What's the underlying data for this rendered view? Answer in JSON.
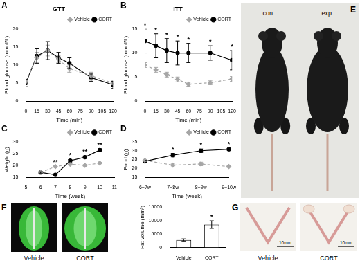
{
  "chart_data": [
    {
      "panel": "A",
      "type": "line",
      "title": "GTT",
      "x_label": "Time (min)",
      "y_label": "Blood glucose (mmol/L)",
      "x": [
        0,
        15,
        30,
        45,
        60,
        90,
        120
      ],
      "xlim": [
        0,
        120
      ],
      "xticks": [
        0,
        15,
        30,
        45,
        60,
        75,
        90,
        105,
        120
      ],
      "ylim": [
        0,
        20
      ],
      "yticks": [
        0,
        5,
        10,
        15,
        20
      ],
      "grid": false,
      "legend": "top right",
      "series": [
        {
          "name": "Vehicle",
          "color": "#a6a6a6",
          "marker": "diamond",
          "line_style": "dashed",
          "values": [
            5.5,
            12,
            14,
            11.5,
            9,
            7,
            5
          ],
          "error": [
            0.5,
            1.5,
            1.5,
            1,
            1,
            1,
            0.5
          ]
        },
        {
          "name": "CORT",
          "color": "#000000",
          "marker": "circle",
          "line_style": "solid",
          "values": [
            5,
            12.5,
            14,
            12,
            10.5,
            6.5,
            4.5
          ],
          "error": [
            1,
            2,
            2.5,
            1.5,
            1.5,
            1,
            1
          ]
        }
      ]
    },
    {
      "panel": "B",
      "type": "line",
      "title": "ITT",
      "x_label": "Time (min)",
      "y_label": "Blood glucose (mmol/L)",
      "x": [
        0,
        15,
        30,
        45,
        60,
        90,
        120
      ],
      "xlim": [
        0,
        120
      ],
      "xticks": [
        0,
        15,
        30,
        45,
        60,
        75,
        90,
        105,
        120
      ],
      "ylim": [
        0,
        15
      ],
      "yticks": [
        0,
        5,
        10,
        15
      ],
      "grid": false,
      "legend": "top right",
      "series": [
        {
          "name": "Vehicle",
          "color": "#a6a6a6",
          "marker": "diamond",
          "line_style": "dashed",
          "values": [
            7.5,
            6.5,
            5.5,
            4.5,
            3.5,
            3.8,
            4.6
          ],
          "error": [
            0.5,
            0.5,
            0.5,
            0.5,
            0.4,
            0.4,
            0.5
          ]
        },
        {
          "name": "CORT",
          "color": "#000000",
          "marker": "circle",
          "line_style": "solid",
          "values": [
            12.5,
            11.5,
            10.5,
            10,
            10,
            10,
            8.5
          ],
          "error": [
            2.5,
            2.5,
            2.5,
            2.5,
            2,
            1.5,
            2
          ]
        }
      ],
      "annotations": [
        {
          "x": 0,
          "text": "*"
        },
        {
          "x": 15,
          "text": "*"
        },
        {
          "x": 30,
          "text": "*"
        },
        {
          "x": 45,
          "text": "*"
        },
        {
          "x": 60,
          "text": "*"
        },
        {
          "x": 90,
          "text": "*"
        },
        {
          "x": 120,
          "text": "*"
        }
      ]
    },
    {
      "panel": "C",
      "type": "line",
      "x_label": "Time (week)",
      "y_label": "Weight (g)",
      "x": [
        6,
        7,
        8,
        9,
        10
      ],
      "xlim": [
        5,
        11
      ],
      "xticks": [
        5,
        6,
        7,
        8,
        9,
        10,
        11
      ],
      "ylim": [
        15,
        30
      ],
      "yticks": [
        15,
        20,
        25,
        30
      ],
      "grid": false,
      "legend": "top right",
      "series": [
        {
          "name": "Vehicle",
          "color": "#a6a6a6",
          "marker": "diamond",
          "line_style": "dashed",
          "values": [
            17,
            19.5,
            20.5,
            20,
            21
          ],
          "error": [
            0.3,
            0.3,
            0.4,
            0.3,
            0.3
          ]
        },
        {
          "name": "CORT",
          "color": "#000000",
          "marker": "circle",
          "line_style": "solid",
          "values": [
            17,
            16,
            22,
            23.5,
            26.5
          ],
          "error": [
            0.3,
            0.4,
            0.5,
            0.5,
            0.6
          ]
        }
      ],
      "annotations": [
        {
          "x": 7,
          "text": "**"
        },
        {
          "x": 8,
          "text": "*"
        },
        {
          "x": 9,
          "text": "**"
        },
        {
          "x": 10,
          "text": "**"
        }
      ]
    },
    {
      "panel": "D",
      "type": "line",
      "x_label": "Time (week)",
      "y_label": "Food (g)",
      "categories": [
        "6~7w",
        "7~8w",
        "8~9w",
        "9~10w"
      ],
      "ylim": [
        15,
        35
      ],
      "yticks": [
        15,
        20,
        25,
        30,
        35
      ],
      "grid": false,
      "legend": "top right",
      "series": [
        {
          "name": "Vehicle",
          "color": "#a6a6a6",
          "marker": "diamond",
          "line_style": "dashed",
          "values": [
            24.5,
            21.8,
            22.5,
            21
          ],
          "error": [
            0.5,
            1,
            1,
            0.5
          ]
        },
        {
          "name": "CORT",
          "color": "#000000",
          "marker": "circle",
          "line_style": "solid",
          "values": [
            24,
            27.5,
            30,
            30.8
          ],
          "error": [
            0.5,
            1,
            1,
            0.5
          ]
        }
      ],
      "annotations": [
        {
          "x": "7~8w",
          "text": "*"
        },
        {
          "x": "8~9w",
          "text": "*"
        },
        {
          "x": "9~10w",
          "text": "*"
        }
      ]
    },
    {
      "type": "bar",
      "y_label": "Fat volume (mm³)",
      "categories": [
        "Vehicle",
        "CORT"
      ],
      "values": [
        2800,
        8500
      ],
      "error": [
        400,
        1400
      ],
      "color": "#ffffff",
      "ylim": [
        0,
        15000
      ],
      "yticks": [
        0,
        5000,
        10000,
        15000
      ],
      "grid": false,
      "annotations": [
        {
          "x": "CORT",
          "text": "*"
        }
      ]
    }
  ],
  "images": [
    {
      "panel": "E",
      "labels": [
        "con.",
        "exp."
      ]
    },
    {
      "panel": "F",
      "labels": [
        "Vehicle",
        "CORT"
      ]
    },
    {
      "panel": "G",
      "labels": [
        "Vehicle",
        "CORT"
      ],
      "scale_bars": [
        "10mm",
        "10mm"
      ]
    }
  ]
}
